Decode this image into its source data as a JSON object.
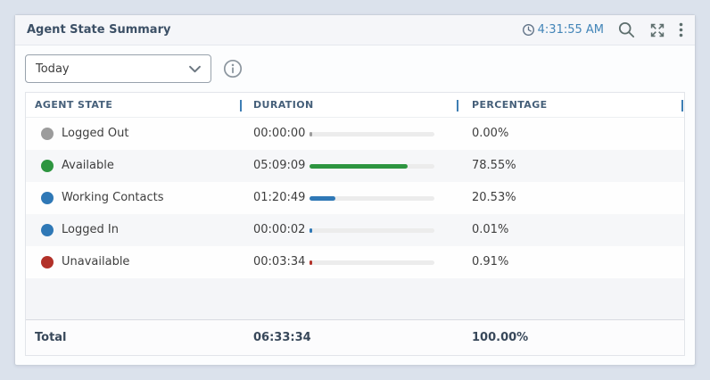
{
  "card": {
    "title": "Agent State Summary",
    "refreshed_at": "4:31:55 AM"
  },
  "icons": {
    "clock": "history-clock",
    "search": "magnifier",
    "expand": "fullscreen-arrows",
    "menu": "vertical-ellipsis",
    "dropdown_chevron": "chevron-down",
    "info": "info-circle"
  },
  "toolbar": {
    "date_filter_value": "Today"
  },
  "table": {
    "columns": {
      "state": "AGENT STATE",
      "duration": "DURATION",
      "percentage": "PERCENTAGE"
    },
    "rows": [
      {
        "state": "Logged Out",
        "color": "#9c9c9c",
        "duration": "00:00:00",
        "percent": 0.0,
        "percentage": "0.00%"
      },
      {
        "state": "Available",
        "color": "#2d9540",
        "duration": "05:09:09",
        "percent": 78.55,
        "percentage": "78.55%"
      },
      {
        "state": "Working Contacts",
        "color": "#2f78b6",
        "duration": "01:20:49",
        "percent": 20.53,
        "percentage": "20.53%"
      },
      {
        "state": "Logged In",
        "color": "#2f78b6",
        "duration": "00:00:02",
        "percent": 0.01,
        "percentage": "0.01%"
      },
      {
        "state": "Unavailable",
        "color": "#b23129",
        "duration": "00:03:34",
        "percent": 0.91,
        "percentage": "0.91%"
      }
    ],
    "total": {
      "label": "Total",
      "duration": "06:33:34",
      "percentage": "100.00%"
    }
  },
  "colors": {
    "page_background": "#dbe2ec",
    "header_separator_blue": "#3e7eb4",
    "time_text_blue": "#4285b8",
    "bar_track": "#ececec"
  }
}
